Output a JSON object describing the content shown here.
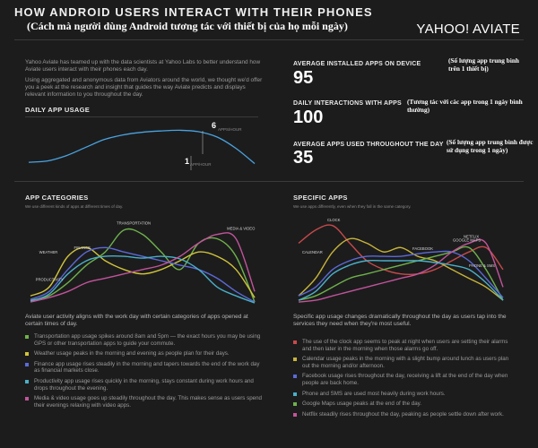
{
  "header": {
    "title": "HOW ANDROID USERS INTERACT WITH THEIR PHONES",
    "subtitle": "(Cách mà người dùng Android tương tác với thiết bị của họ mỗi ngày)",
    "brand": "YAHOO! AVIATE"
  },
  "intro": {
    "p1": "Yahoo Aviate has teamed up with the data scientists at Yahoo Labs to better understand how Aviate users interact with their phones each day.",
    "p2": "Using aggregated and anonymous data from Aviators around the world, we thought we'd offer you a peek at the research and insight that guides the way Aviate predicts and displays relevant information to you throughout the day."
  },
  "stats": [
    {
      "label": "AVERAGE INSTALLED APPS ON DEVICE",
      "value": "95",
      "note": "(Số lượng app trung bình trên 1 thiết bị)"
    },
    {
      "label": "DAILY INTERACTIONS WITH APPS",
      "value": "100",
      "note": "(Tương tác với các app trong 1 ngày bình thường)"
    },
    {
      "label": "AVERAGE APPS USED THROUGHOUT THE DAY",
      "value": "35",
      "note": "(Số lượng app trung bình được sử dụng trong 1 ngày)"
    }
  ],
  "daily_usage": {
    "heading": "DAILY APP USAGE",
    "peak_value": "6",
    "peak_unit": "APPS/HOUR",
    "low_value": "1",
    "low_unit": "APP/HOUR"
  },
  "chart_data": [
    {
      "type": "line",
      "title": "DAILY APP USAGE",
      "x": [
        0,
        1,
        2,
        3,
        4,
        5,
        6,
        7,
        8,
        9,
        10,
        11,
        12
      ],
      "series": [
        {
          "values": [
            1.2,
            1.4,
            2.2,
            3.4,
            4.6,
            5.3,
            5.7,
            5.9,
            6,
            5.8,
            5,
            3.3,
            1
          ]
        }
      ],
      "ylim": [
        0,
        7
      ],
      "annotations": [
        "6 APPS/HOUR",
        "1 APP/HOUR"
      ],
      "grid": false
    },
    {
      "type": "line",
      "title": "APP CATEGORIES",
      "subtitle": "We use different kinds of apps at different times of day.",
      "x": [
        0,
        1,
        2,
        3,
        4,
        5,
        6,
        7,
        8,
        9,
        10,
        11,
        12
      ],
      "ylim": [
        0,
        10
      ],
      "series": [
        {
          "name": "TRANSPORTATION",
          "color": "#6fb24a",
          "values": [
            0.5,
            1,
            2.5,
            4.5,
            6,
            8.5,
            8,
            6,
            4,
            7,
            7.5,
            5.5,
            0.3
          ]
        },
        {
          "name": "WEATHER",
          "color": "#d1c43a",
          "values": [
            1,
            2,
            5.5,
            6.5,
            5,
            4,
            3.5,
            4,
            5,
            6,
            5.5,
            4,
            0.8
          ]
        },
        {
          "name": "FINANCE",
          "color": "#5b6ad8",
          "values": [
            0.6,
            1.5,
            4,
            6,
            6.5,
            6,
            5.5,
            5,
            4.5,
            4,
            3,
            1.5,
            0.3
          ]
        },
        {
          "name": "PRODUCTIVITY",
          "color": "#4ab0c8",
          "values": [
            0.4,
            1.2,
            3.5,
            5,
            5.5,
            5.5,
            5.3,
            5.5,
            5.2,
            4,
            2,
            1,
            0.2
          ]
        },
        {
          "name": "MEDIA & VIDEO",
          "color": "#c2549a",
          "values": [
            0.3,
            0.8,
            1.5,
            2.5,
            3,
            3.5,
            4,
            4.5,
            5.5,
            7,
            8,
            7.5,
            1.5
          ]
        }
      ]
    },
    {
      "type": "line",
      "title": "SPECIFIC APPS",
      "subtitle": "We use apps differently, even when they fall in the same category.",
      "x": [
        0,
        1,
        2,
        3,
        4,
        5,
        6,
        7,
        8,
        9,
        10,
        11,
        12
      ],
      "ylim": [
        0,
        10
      ],
      "series": [
        {
          "name": "CLOCK",
          "color": "#c84a4a",
          "values": [
            7,
            8.5,
            9,
            7,
            5,
            4,
            3.5,
            3.5,
            4,
            5,
            6,
            6.5,
            4
          ]
        },
        {
          "name": "CALENDAR",
          "color": "#c8b43a",
          "values": [
            1,
            3,
            6,
            7.5,
            7,
            6,
            6.5,
            5.5,
            5,
            4,
            3,
            2,
            0.5
          ]
        },
        {
          "name": "GOOGLE MAPS",
          "color": "#6fb24a",
          "values": [
            0.5,
            1,
            2,
            3,
            3.5,
            4,
            4.5,
            5,
            5.5,
            6,
            6.5,
            4,
            0.5
          ]
        },
        {
          "name": "FACEBOOK",
          "color": "#5b6ad8",
          "values": [
            1,
            2,
            4,
            5,
            5.5,
            5.5,
            5.5,
            5.8,
            6,
            6,
            5,
            3,
            0.8
          ]
        },
        {
          "name": "NETFLIX",
          "color": "#c2549a",
          "values": [
            0.3,
            0.5,
            1,
            1.5,
            2,
            2.5,
            3,
            3.5,
            4.5,
            6,
            7,
            7,
            2
          ]
        },
        {
          "name": "PHONE & SMS",
          "color": "#4ab0c8",
          "values": [
            0.5,
            1.5,
            3.5,
            4.5,
            5,
            5,
            5,
            5,
            4.8,
            4.5,
            4,
            2.5,
            0.5
          ]
        }
      ]
    }
  ],
  "app_categories": {
    "heading": "APP CATEGORIES",
    "caption": "We use different kinds of apps at different times of day.",
    "summary": "Aviate user activity aligns with the work day with certain categories of apps opened at certain times of day.",
    "bullets": [
      {
        "color": "#6fb24a",
        "text": "Transportation app usage spikes around 8am and 5pm — the exact hours you may be using GPS or other transportation apps to guide your commute."
      },
      {
        "color": "#d1c43a",
        "text": "Weather usage peaks in the morning and evening as people plan for their days."
      },
      {
        "color": "#5b6ad8",
        "text": "Finance app usage rises steadily in the morning and tapers towards the end of the work day as financial markets close."
      },
      {
        "color": "#4ab0c8",
        "text": "Productivity app usage rises quickly in the morning, stays constant during work hours and drops throughout the evening."
      },
      {
        "color": "#c2549a",
        "text": "Media & video usage goes up steadily throughout the day. This makes sense as users spend their evenings relaxing with video apps."
      }
    ]
  },
  "specific_apps": {
    "heading": "SPECIFIC APPS",
    "caption": "We use apps differently, even when they fall in the same category.",
    "summary": "Specific app usage changes dramatically throughout the day as users tap into the services they need when they're most useful.",
    "bullets": [
      {
        "color": "#c84a4a",
        "text": "The use of the clock app seems to peak at night when users are setting their alarms and then later in the morning when those alarms go off."
      },
      {
        "color": "#c8b43a",
        "text": "Calendar usage peaks in the morning with a slight bump around lunch as users plan out the morning and/or afternoon."
      },
      {
        "color": "#5b6ad8",
        "text": "Facebook usage rises throughout the day, receiving a lift at the end of the day when people are back home."
      },
      {
        "color": "#4ab0c8",
        "text": "Phone and SMS are used most heavily during work hours."
      },
      {
        "color": "#6fb24a",
        "text": "Google Maps usage peaks at the end of the day."
      },
      {
        "color": "#c2549a",
        "text": "Netflix steadily rises throughout the day, peaking as people settle down after work."
      }
    ]
  }
}
